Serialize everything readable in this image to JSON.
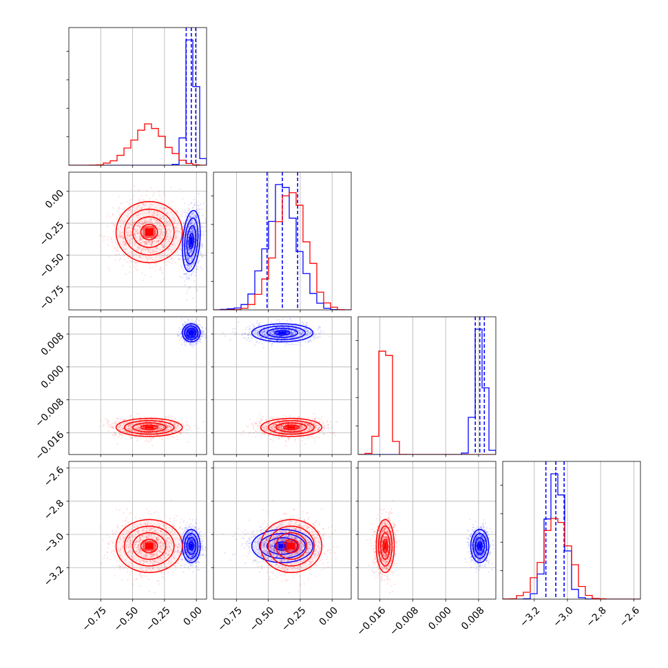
{
  "colors": {
    "red": "#ff0000",
    "blue": "#0000ff",
    "grid": "#b0b0b0",
    "frame": "#000000"
  },
  "chart_data": {
    "type": "corner",
    "title": "",
    "grid": true,
    "parameters": [
      {
        "range": [
          -1.0,
          0.08
        ],
        "ticks": [
          -0.75,
          -0.5,
          -0.25,
          0.0
        ],
        "tick_labels": [
          "−0.75",
          "−0.50",
          "−0.25",
          "0.00"
        ]
      },
      {
        "range": [
          -0.93,
          0.15
        ],
        "ticks": [
          -0.75,
          -0.5,
          -0.25,
          0.0
        ],
        "tick_labels": [
          "−0.75",
          "−0.50",
          "−0.25",
          "0.00"
        ]
      },
      {
        "range": [
          -0.0213,
          0.0122
        ],
        "ticks": [
          -0.016,
          -0.008,
          0.0,
          0.008
        ],
        "tick_labels": [
          "−0.016",
          "−0.008",
          "0.000",
          "0.008"
        ]
      },
      {
        "range": [
          -3.39,
          -2.56
        ],
        "ticks": [
          -3.2,
          -3.0,
          -2.8,
          -2.6
        ],
        "tick_labels": [
          "−3.2",
          "−3.0",
          "−2.8",
          "−2.6"
        ]
      }
    ],
    "series": [
      {
        "color": "#ff0000",
        "means": [
          -0.37,
          -0.32,
          -0.0147,
          -3.07
        ],
        "sds": [
          0.13,
          0.12,
          0.0011,
          0.08
        ],
        "corr": [
          [
            1,
            0,
            0,
            0
          ],
          [
            0,
            1,
            0,
            0
          ],
          [
            0,
            0,
            1,
            0
          ],
          [
            0,
            0,
            0,
            1
          ]
        ],
        "quantiles": [
          null,
          null,
          null,
          null
        ]
      },
      {
        "color": "#0000ff",
        "means": [
          -0.04,
          -0.39,
          0.0083,
          -3.07
        ],
        "sds": [
          0.035,
          0.12,
          0.0011,
          0.05
        ],
        "corr": [
          [
            1,
            0.25,
            0,
            0
          ],
          [
            0.25,
            1,
            0,
            0
          ],
          [
            0,
            0,
            1,
            0
          ],
          [
            0,
            0,
            0,
            1
          ]
        ],
        "quantiles": [
          [
            -0.08,
            -0.04,
            -0.005
          ],
          [
            -0.51,
            -0.39,
            -0.27
          ],
          [
            0.0072,
            0.0083,
            0.0094
          ],
          [
            -3.13,
            -3.07,
            -3.02
          ]
        ]
      }
    ]
  }
}
